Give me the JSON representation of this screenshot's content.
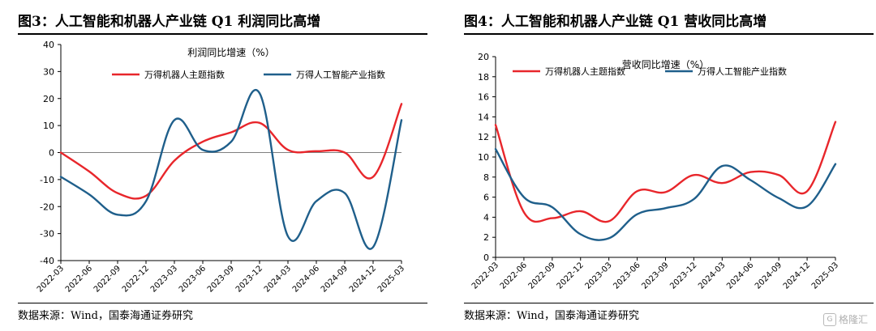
{
  "figures": [
    {
      "heading": "图3：人工智能和机器人产业链 Q1 利润同比高增",
      "source": "数据来源：Wind，国泰海通证券研究"
    },
    {
      "heading": "图4：人工智能和机器人产业链 Q1 营收同比高增",
      "source": "数据来源：Wind，国泰海通证券研究"
    }
  ],
  "watermark": "格隆汇",
  "chart_data": [
    {
      "type": "line",
      "title": "利润同比增速（%）",
      "categories": [
        "2022-03",
        "2022-06",
        "2022-09",
        "2022-12",
        "2023-03",
        "2023-06",
        "2023-09",
        "2023-12",
        "2024-03",
        "2024-06",
        "2024-09",
        "2024-12",
        "2025-03"
      ],
      "series": [
        {
          "name": "万得机器人主题指数",
          "color": "#e8262b",
          "values": [
            0,
            -7,
            -15,
            -16,
            -3,
            4,
            7.5,
            11,
            1,
            0.5,
            0,
            -9,
            18
          ]
        },
        {
          "name": "万得人工智能产业指数",
          "color": "#1f5f8b",
          "values": [
            -9,
            -15.5,
            -23,
            -18,
            12,
            1,
            4,
            22,
            -31,
            -18,
            -15,
            -35,
            12
          ]
        }
      ],
      "ylim": [
        -40,
        40
      ],
      "yticks": [
        -40,
        -30,
        -20,
        -10,
        0,
        10,
        20,
        30,
        40
      ],
      "zero_line": true,
      "legend": "top",
      "grid": false
    },
    {
      "type": "line",
      "title": "营收同比增速（%）",
      "categories": [
        "2022-03",
        "2022-06",
        "2022-09",
        "2022-12",
        "2023-03",
        "2023-06",
        "2023-09",
        "2023-12",
        "2024-03",
        "2024-06",
        "2024-09",
        "2024-12",
        "2025-03"
      ],
      "series": [
        {
          "name": "万得机器人主题指数",
          "color": "#e8262b",
          "values": [
            13.2,
            4.5,
            3.9,
            4.6,
            3.6,
            6.6,
            6.5,
            8.2,
            7.4,
            8.5,
            8.2,
            6.6,
            13.5
          ]
        },
        {
          "name": "万得人工智能产业指数",
          "color": "#1f5f8b",
          "values": [
            10.8,
            6.0,
            5.0,
            2.3,
            1.9,
            4.3,
            4.9,
            5.8,
            9.1,
            7.7,
            5.9,
            5.1,
            9.3
          ]
        }
      ],
      "ylim": [
        0,
        20
      ],
      "yticks": [
        0,
        2,
        4,
        6,
        8,
        10,
        12,
        14,
        16,
        18,
        20
      ],
      "zero_line": false,
      "legend": "top",
      "grid": false
    }
  ]
}
